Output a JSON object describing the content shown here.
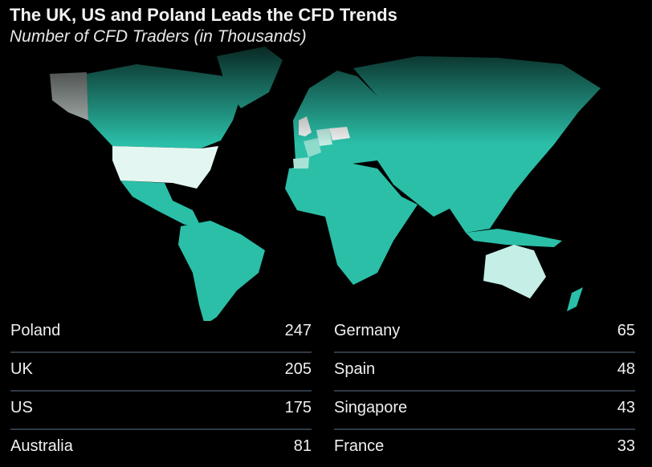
{
  "header": {
    "title": "The UK, US and Poland Leads the CFD Trends",
    "subtitle": "Number of CFD Traders (in Thousands)"
  },
  "colors": {
    "background": "#000000",
    "land": "#2bbfa8",
    "divider": "#2f3a45",
    "highest": "#f2f4f3",
    "high": "#e4f6f2",
    "mid": "#c2ece3",
    "low": "#9fe0d2"
  },
  "chart_data": {
    "type": "table",
    "title": "The UK, US and Poland Leads the CFD Trends",
    "subtitle": "Number of CFD Traders (in Thousands)",
    "rows": [
      {
        "country": "Poland",
        "value": 247
      },
      {
        "country": "UK",
        "value": 205
      },
      {
        "country": "US",
        "value": 175
      },
      {
        "country": "Australia",
        "value": 81
      },
      {
        "country": "Germany",
        "value": 65
      },
      {
        "country": "Spain",
        "value": 48
      },
      {
        "country": "Singapore",
        "value": 43
      },
      {
        "country": "France",
        "value": 33
      }
    ]
  },
  "table": {
    "left": [
      {
        "country": "Poland",
        "value": "247"
      },
      {
        "country": "UK",
        "value": "205"
      },
      {
        "country": "US",
        "value": "175"
      },
      {
        "country": "Australia",
        "value": "81"
      }
    ],
    "right": [
      {
        "country": "Germany",
        "value": "65"
      },
      {
        "country": "Spain",
        "value": "48"
      },
      {
        "country": "Singapore",
        "value": "43"
      },
      {
        "country": "France",
        "value": "33"
      }
    ]
  }
}
